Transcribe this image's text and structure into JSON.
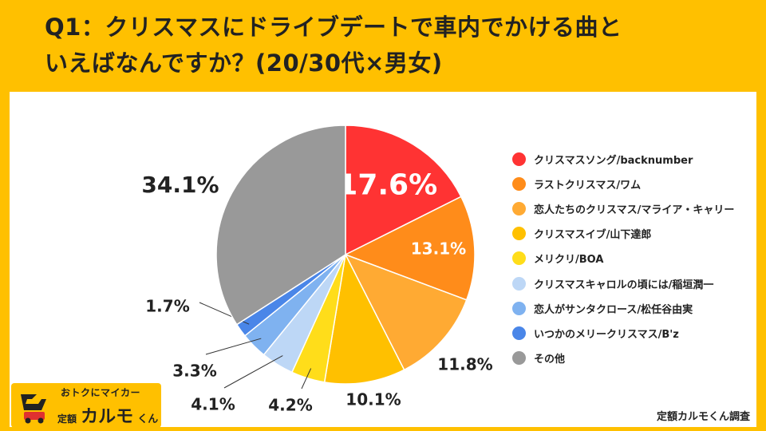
{
  "title_lines": [
    "Q1：クリスマスにドライブデートで車内でかける曲と",
    "いえばなんですか？(20/30代×男女)"
  ],
  "source": "定額カルモくん調査",
  "logo": {
    "tagline": "おトクにマイカー",
    "prefix": "定額",
    "name": "カルモ",
    "suffix": "くん"
  },
  "colors": {
    "background": "#FFC000",
    "panel": "#FFFFFF"
  },
  "chart_data": {
    "type": "pie",
    "title": "",
    "start_angle_deg": 0,
    "direction": "clockwise",
    "labels": [
      "クリスマスソング/backnumber",
      "ラストクリスマス/ワム",
      "恋人たちのクリスマス/マライア・キャリー",
      "クリスマスイブ/山下達郎",
      "メリクリ/BOA",
      "クリスマスキャロルの頃には/稲垣潤一",
      "恋人がサンタクロース/松任谷由実",
      "いつかのメリークリスマス/B'z",
      "その他"
    ],
    "values": [
      17.6,
      13.1,
      11.8,
      10.1,
      4.2,
      4.1,
      3.3,
      1.7,
      34.1
    ],
    "data_labels": [
      "17.6%",
      "13.1%",
      "11.8%",
      "10.1%",
      "4.2%",
      "4.1%",
      "3.3%",
      "1.7%",
      "34.1%"
    ],
    "colors": [
      "#FF3333",
      "#FF8C1A",
      "#FFAA33",
      "#FFC000",
      "#FFDD1A",
      "#BDD7F6",
      "#7FB2F0",
      "#4A86E8",
      "#999999"
    ],
    "legend_position": "right"
  }
}
